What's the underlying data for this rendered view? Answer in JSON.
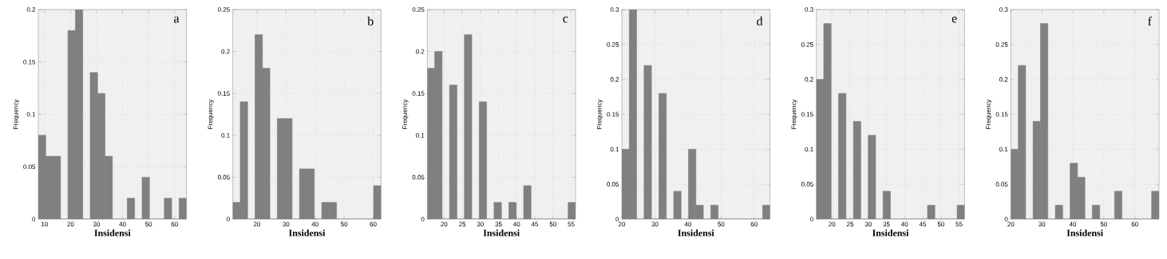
{
  "chart_data": [
    {
      "type": "histogram",
      "xlabel": "Insidensi",
      "ylabel": "Frequency",
      "annotations": [
        "a"
      ],
      "color": "#808080",
      "grid": true,
      "bins": [
        7.6,
        10.45,
        13.3,
        16.15,
        19,
        21.85,
        24.7,
        27.55,
        30.4,
        33.25,
        36.1,
        38.95,
        41.8,
        44.65,
        47.5,
        50.35,
        53.2,
        56.05,
        58.9,
        61.75,
        64.6
      ],
      "values": [
        0.08,
        0.06,
        0.06,
        0,
        0.18,
        0.2,
        0,
        0.14,
        0.12,
        0.06,
        0,
        0,
        0.02,
        0,
        0.04,
        0,
        0,
        0.02,
        0,
        0.02
      ],
      "xlim": [
        7.6,
        64.6
      ],
      "xticks": [
        10,
        20,
        30,
        40,
        50,
        60
      ],
      "ylim": [
        0,
        0.2
      ],
      "yticks": [
        0,
        0.05,
        0.1,
        0.15,
        0.2
      ]
    },
    {
      "type": "histogram",
      "xlabel": "Insidensi",
      "ylabel": "Frequency",
      "annotations": [
        "b"
      ],
      "color": "#808080",
      "grid": true,
      "bins": [
        11.7,
        14.25,
        16.8,
        19.35,
        21.9,
        24.45,
        27,
        29.55,
        32.1,
        34.65,
        37.2,
        39.75,
        42.3,
        44.85,
        47.4,
        49.95,
        52.5,
        55.05,
        57.6,
        60.15,
        62.7
      ],
      "values": [
        0.02,
        0.14,
        0,
        0.22,
        0.18,
        0,
        0.12,
        0.12,
        0,
        0.06,
        0.06,
        0,
        0.02,
        0.02,
        0,
        0,
        0,
        0,
        0,
        0.04
      ],
      "xlim": [
        11.7,
        62.7
      ],
      "xticks": [
        20,
        30,
        40,
        50,
        60
      ],
      "ylim": [
        0,
        0.25
      ],
      "yticks": [
        0,
        0.05,
        0.1,
        0.15,
        0.2,
        0.25
      ]
    },
    {
      "type": "histogram",
      "xlabel": "Insidensi",
      "ylabel": "Frequency",
      "annotations": [
        "c"
      ],
      "color": "#808080",
      "grid": true,
      "bins": [
        15.4,
        17.44,
        19.48,
        21.52,
        23.56,
        25.6,
        27.64,
        29.68,
        31.72,
        33.76,
        35.8,
        37.84,
        39.88,
        41.92,
        43.96,
        46,
        48.04,
        50.08,
        52.12,
        54.16,
        56.2
      ],
      "values": [
        0.18,
        0.2,
        0,
        0.16,
        0,
        0.22,
        0,
        0.14,
        0,
        0.02,
        0,
        0.02,
        0,
        0.04,
        0,
        0,
        0,
        0,
        0,
        0.02
      ],
      "xlim": [
        15.4,
        56.2
      ],
      "xticks": [
        20,
        25,
        30,
        35,
        40,
        45,
        50,
        55
      ],
      "ylim": [
        0,
        0.25
      ],
      "yticks": [
        0,
        0.05,
        0.1,
        0.15,
        0.2,
        0.25
      ]
    },
    {
      "type": "histogram",
      "xlabel": "Insidensi",
      "ylabel": "Frequency",
      "annotations": [
        "d"
      ],
      "color": "#808080",
      "grid": true,
      "bins": [
        20,
        22.24,
        24.48,
        26.72,
        28.96,
        31.2,
        33.44,
        35.68,
        37.92,
        40.16,
        42.4,
        44.64,
        46.88,
        49.12,
        51.36,
        53.6,
        55.84,
        58.08,
        60.32,
        62.56,
        64.8
      ],
      "values": [
        0.1,
        0.3,
        0,
        0.22,
        0,
        0.18,
        0,
        0.04,
        0,
        0.1,
        0.02,
        0,
        0.02,
        0,
        0,
        0,
        0,
        0,
        0,
        0.02
      ],
      "xlim": [
        20,
        64.8
      ],
      "xticks": [
        20,
        30,
        40,
        50,
        60
      ],
      "ylim": [
        0,
        0.3
      ],
      "yticks": [
        0,
        0.05,
        0.1,
        0.15,
        0.2,
        0.25,
        0.3
      ]
    },
    {
      "type": "histogram",
      "xlabel": "Insidensi",
      "ylabel": "Frequency",
      "annotations": [
        "e"
      ],
      "color": "#808080",
      "grid": true,
      "bins": [
        15.7,
        17.74,
        19.78,
        21.82,
        23.86,
        25.9,
        27.94,
        29.98,
        32.02,
        34.06,
        36.1,
        38.14,
        40.18,
        42.22,
        44.26,
        46.3,
        48.34,
        50.38,
        52.42,
        54.46,
        56.5
      ],
      "values": [
        0.2,
        0.28,
        0,
        0.18,
        0,
        0.14,
        0,
        0.12,
        0,
        0.04,
        0,
        0,
        0,
        0,
        0,
        0.02,
        0,
        0,
        0,
        0.02
      ],
      "xlim": [
        15.7,
        56.5
      ],
      "xticks": [
        20,
        25,
        30,
        35,
        40,
        45,
        50,
        55
      ],
      "ylim": [
        0,
        0.3
      ],
      "yticks": [
        0,
        0.05,
        0.1,
        0.15,
        0.2,
        0.25,
        0.3
      ]
    },
    {
      "type": "histogram",
      "xlabel": "Insidensi",
      "ylabel": "Frequency",
      "annotations": [
        "f"
      ],
      "color": "#808080",
      "grid": true,
      "bins": [
        20,
        22.39,
        24.78,
        27.17,
        29.56,
        31.95,
        34.34,
        36.73,
        39.12,
        41.51,
        43.9,
        46.29,
        48.68,
        51.07,
        53.46,
        55.85,
        58.24,
        60.63,
        63.02,
        65.41,
        67.8
      ],
      "values": [
        0.1,
        0.22,
        0,
        0.14,
        0.28,
        0,
        0.02,
        0,
        0.08,
        0.06,
        0,
        0.02,
        0,
        0,
        0.04,
        0,
        0,
        0,
        0,
        0.04
      ],
      "xlim": [
        20,
        67.8
      ],
      "xticks": [
        20,
        30,
        40,
        50,
        60
      ],
      "ylim": [
        0,
        0.3
      ],
      "yticks": [
        0,
        0.05,
        0.1,
        0.15,
        0.2,
        0.25,
        0.3
      ]
    }
  ]
}
